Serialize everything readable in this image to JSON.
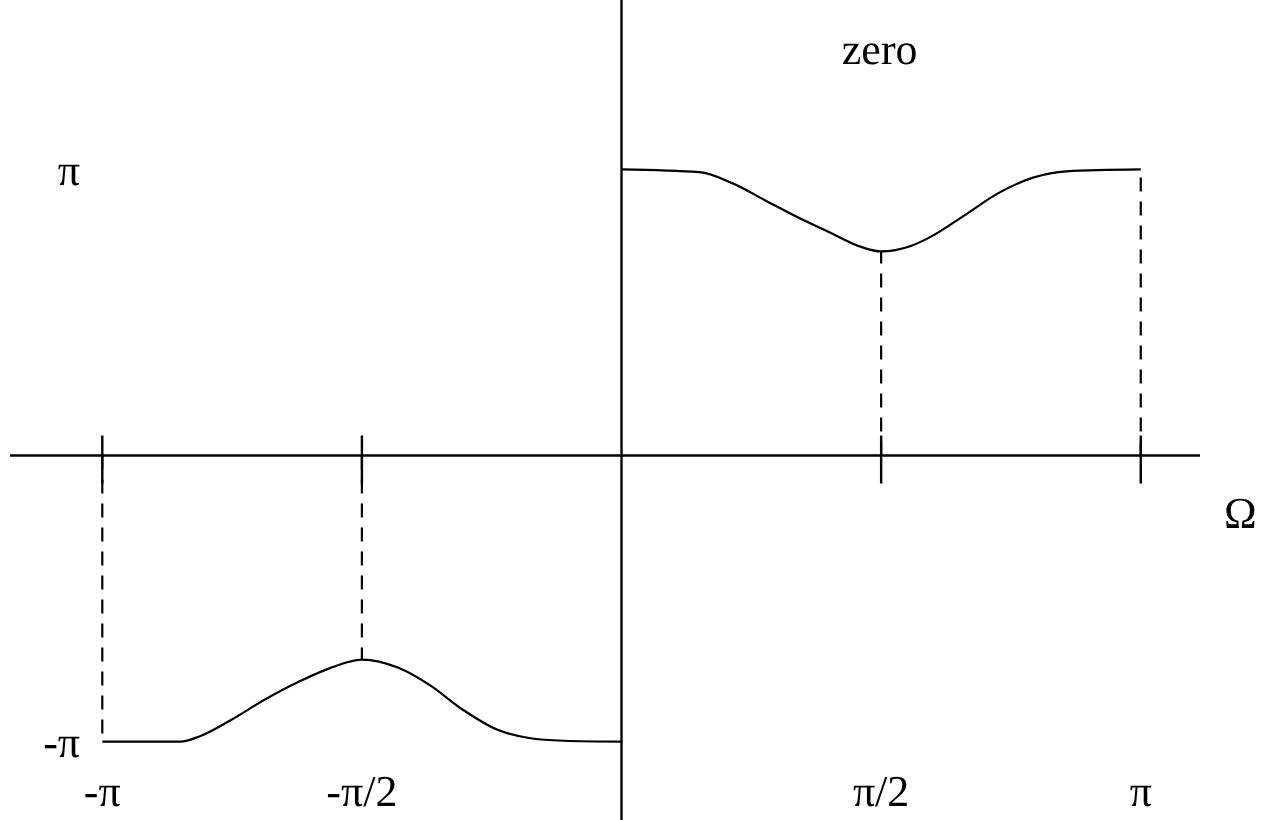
{
  "chart_data": {
    "type": "line",
    "xlabel": "Ω",
    "annotations": [
      "zero"
    ],
    "xlim": [
      -3.7,
      3.5
    ],
    "ylim": [
      -4.0,
      5.0
    ],
    "xticks": [
      {
        "value": -3.1416,
        "label": "-π"
      },
      {
        "value": -1.5708,
        "label": "-π/2"
      },
      {
        "value": 1.5708,
        "label": "π/2"
      },
      {
        "value": 3.1416,
        "label": "π"
      }
    ],
    "yticks": [
      {
        "value": 3.1416,
        "label": "π"
      },
      {
        "value": -3.1416,
        "label": "-π"
      }
    ],
    "marker": "none",
    "line_style": "solid",
    "series": [
      {
        "color": "#000000",
        "x": [
          -3.1416,
          -2.67,
          -2.55,
          -2.36,
          -2.16,
          -1.95,
          -1.76,
          -1.64,
          -1.5708,
          -1.35,
          -1.16,
          -0.96,
          -0.75,
          -0.56,
          -0.35,
          0
        ],
        "values": [
          -3.14,
          -3.14,
          -3.08,
          -2.9,
          -2.68,
          -2.48,
          -2.33,
          -2.26,
          -2.24,
          -2.33,
          -2.52,
          -2.79,
          -3.01,
          -3.1,
          -3.13,
          -3.14
        ]
      },
      {
        "color": "#000000",
        "x": [
          0,
          0.47,
          0.67,
          0.87,
          1.06,
          1.27,
          1.45,
          1.5708,
          1.75,
          1.87,
          2.07,
          2.28,
          2.49,
          2.69,
          3.1416
        ],
        "values": [
          3.14,
          3.11,
          2.99,
          2.8,
          2.62,
          2.44,
          2.29,
          2.24,
          2.3,
          2.4,
          2.63,
          2.88,
          3.05,
          3.12,
          3.14
        ]
      },
      {
        "color": "#000000",
        "line_style": "dashed",
        "x": [
          -3.1416,
          -3.1416
        ],
        "values": [
          0,
          -3.14
        ]
      },
      {
        "color": "#000000",
        "line_style": "dashed",
        "x": [
          -1.5708,
          -1.5708
        ],
        "values": [
          0,
          -2.24
        ]
      },
      {
        "color": "#000000",
        "line_style": "dashed",
        "x": [
          1.5708,
          1.5708
        ],
        "values": [
          0,
          2.24
        ]
      },
      {
        "color": "#000000",
        "line_style": "dashed",
        "x": [
          3.1416,
          3.1416
        ],
        "values": [
          0,
          3.14
        ]
      }
    ]
  }
}
